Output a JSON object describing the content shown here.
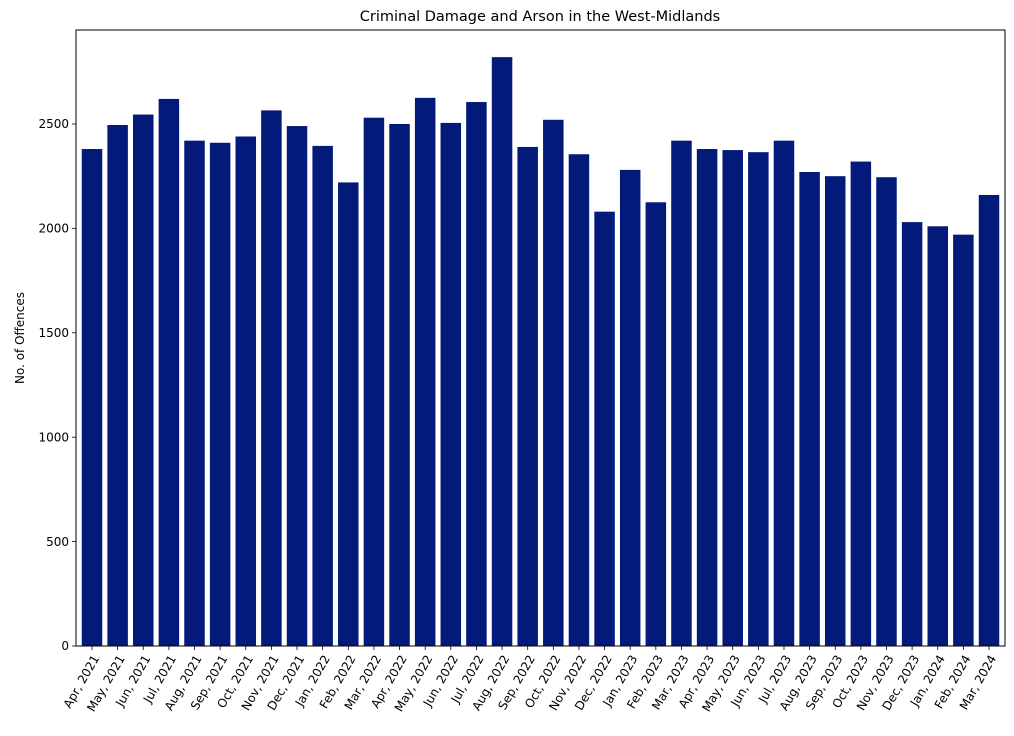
{
  "chart_data": {
    "type": "bar",
    "title": "Criminal Damage and Arson in the West-Midlands",
    "xlabel": "",
    "ylabel": "No. of Offences",
    "categories": [
      "Apr, 2021",
      "May, 2021",
      "Jun, 2021",
      "Jul, 2021",
      "Aug, 2021",
      "Sep, 2021",
      "Oct, 2021",
      "Nov, 2021",
      "Dec, 2021",
      "Jan, 2022",
      "Feb, 2022",
      "Mar, 2022",
      "Apr, 2022",
      "May, 2022",
      "Jun, 2022",
      "Jul, 2022",
      "Aug, 2022",
      "Sep, 2022",
      "Oct, 2022",
      "Nov, 2022",
      "Dec, 2022",
      "Jan, 2023",
      "Feb, 2023",
      "Mar, 2023",
      "Apr, 2023",
      "May, 2023",
      "Jun, 2023",
      "Jul, 2023",
      "Aug, 2023",
      "Sep, 2023",
      "Oct, 2023",
      "Nov, 2023",
      "Dec, 2023",
      "Jan, 2024",
      "Feb, 2024",
      "Mar, 2024"
    ],
    "values": [
      2380,
      2495,
      2545,
      2620,
      2420,
      2410,
      2440,
      2565,
      2490,
      2395,
      2220,
      2530,
      2500,
      2625,
      2505,
      2605,
      2820,
      2390,
      2520,
      2355,
      2080,
      2280,
      2125,
      2420,
      2380,
      2375,
      2365,
      2420,
      2270,
      2250,
      2320,
      2245,
      2030,
      2010,
      1970,
      2160
    ],
    "ylim": [
      0,
      2950
    ],
    "yticks": [
      0,
      500,
      1000,
      1500,
      2000,
      2500
    ],
    "bar_color": "#031a7a",
    "grid": false,
    "xtick_rotation": 60
  }
}
